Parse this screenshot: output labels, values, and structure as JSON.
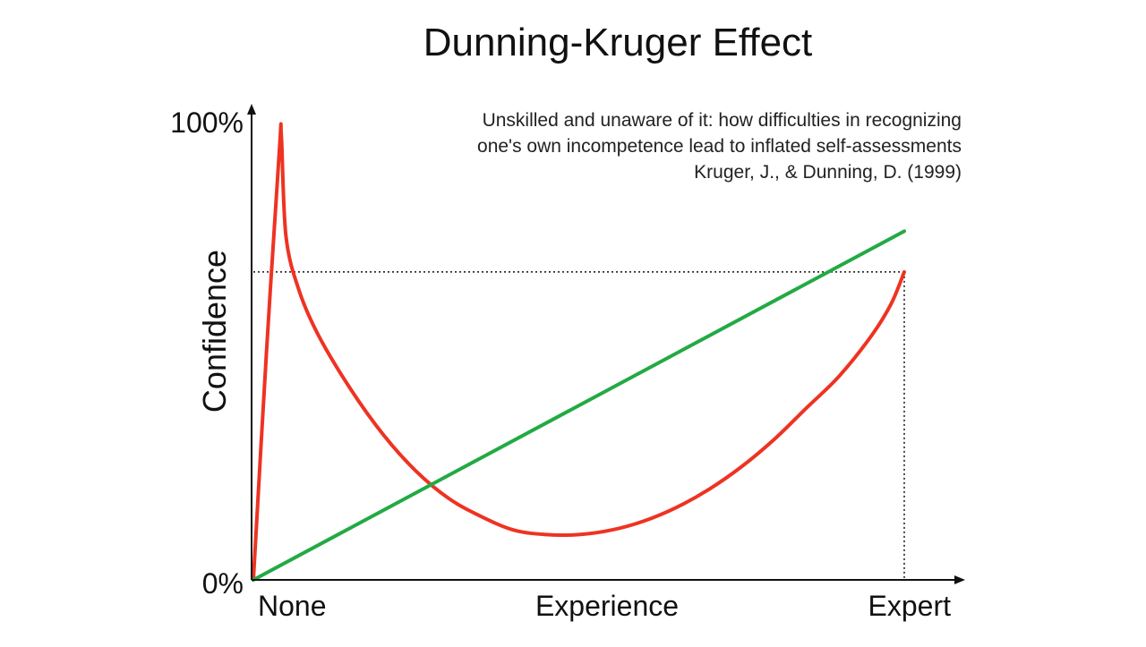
{
  "chart_data": {
    "type": "line",
    "title": "Dunning-Kruger Effect",
    "annotation_lines": [
      "Unskilled and unaware of it: how difficulties in recognizing",
      "one's own incompetence lead to inflated self-assessments",
      "Kruger, J., & Dunning, D. (1999)"
    ],
    "xlabel": "Experience",
    "ylabel": "Confidence",
    "x_tick_labels": [
      "None",
      "Expert"
    ],
    "y_tick_labels": [
      "100%",
      "0%"
    ],
    "xlim": [
      0,
      100
    ],
    "ylim": [
      0,
      100
    ],
    "grid": false,
    "reference_lines": {
      "expert_confidence_level": 68,
      "expert_x": 100
    },
    "series": [
      {
        "color": "#ee3322",
        "x": [
          0,
          2,
          4,
          4.3,
          5,
          7,
          10,
          15,
          20,
          25,
          30,
          35,
          40,
          45,
          50,
          55,
          60,
          65,
          70,
          75,
          80,
          85,
          90,
          95,
          98,
          100
        ],
        "y": [
          0,
          50,
          95,
          98,
          76,
          64,
          54,
          42,
          32,
          24,
          18,
          14,
          11,
          10,
          10,
          11,
          13,
          16,
          20,
          25,
          31,
          38,
          45,
          54,
          61,
          68
        ]
      },
      {
        "color": "#22aa44",
        "x": [
          0,
          100
        ],
        "y": [
          0,
          77
        ]
      }
    ]
  }
}
